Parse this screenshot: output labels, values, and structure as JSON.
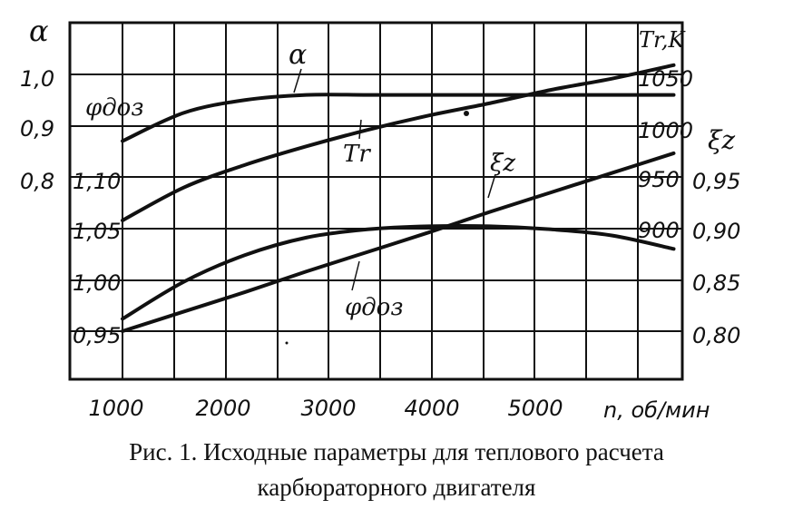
{
  "chart_data": {
    "type": "line",
    "x": [
      1000,
      1500,
      2000,
      2500,
      3000,
      3500,
      4000,
      4500,
      5000,
      5500
    ],
    "xlabel": "n, об/мин",
    "x_ticks": [
      "1000",
      "2000",
      "3000",
      "4000",
      "5000"
    ],
    "xlim": [
      1000,
      6000
    ],
    "axes": {
      "alpha": {
        "label": "α",
        "ticks": [
          "1,0",
          "0,9",
          "0,8"
        ],
        "range": [
          0.7,
          1.1
        ]
      },
      "phi": {
        "label": "φдоз",
        "ticks": [
          "1,10",
          "1,05",
          "1,00",
          "0,95"
        ],
        "range": [
          0.9,
          1.15
        ]
      },
      "T": {
        "label": "Tr,K",
        "ticks": [
          "1050",
          "1000",
          "950",
          "900"
        ],
        "range": [
          800,
          1100
        ]
      },
      "xi": {
        "label": "ξz",
        "ticks": [
          "0,95",
          "0,90",
          "0,85",
          "0,80"
        ],
        "range": [
          0.75,
          1.0
        ]
      }
    },
    "series": [
      {
        "name": "α",
        "axis": "alpha",
        "values": [
          0.87,
          0.925,
          0.95,
          0.96,
          0.96,
          0.96,
          0.96,
          0.96,
          0.96,
          0.96
        ]
      },
      {
        "name": "Tr",
        "axis": "T",
        "values": [
          908,
          940,
          962,
          980,
          996,
          1010,
          1022,
          1035,
          1046,
          1059
        ]
      },
      {
        "name": "ξz",
        "axis": "xi",
        "values": [
          0.812,
          0.848,
          0.874,
          0.891,
          0.899,
          0.902,
          0.902,
          0.899,
          0.893,
          0.88
        ]
      },
      {
        "name": "φдоз",
        "axis": "phi",
        "values": [
          0.95,
          0.969,
          0.988,
          1.008,
          1.027,
          1.046,
          1.066,
          1.085,
          1.104,
          1.123
        ]
      }
    ],
    "grid": true
  },
  "labels": {
    "alpha_axis": "α",
    "phi_axis_top": "φдоз",
    "T_axis": "Tr,K",
    "xi_axis": "ξz",
    "curve_alpha": "α",
    "curve_T": "Tr",
    "curve_xi": "ξz",
    "curve_phi": "φдоз",
    "x_axis": "n, об/мин"
  },
  "caption": {
    "line1": "Рис. 1. Исходные параметры для теплового расчета",
    "line2": "карбюраторного двигателя"
  }
}
